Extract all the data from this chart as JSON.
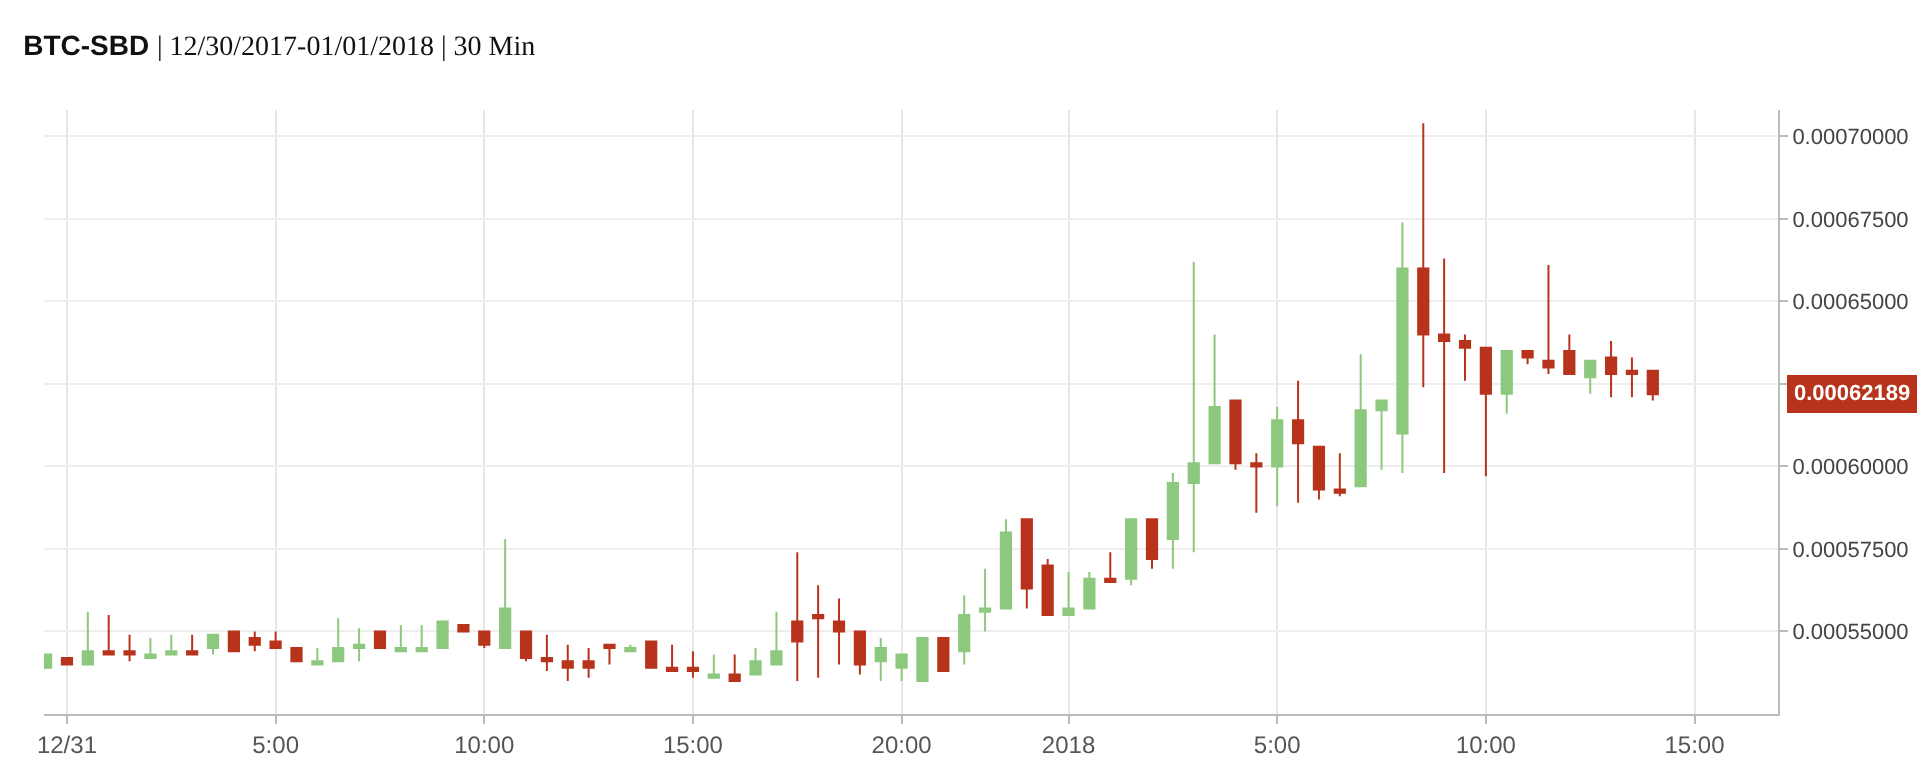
{
  "chart_data": {
    "type": "candlestick",
    "title": "BTC-SBD | 12/30/2017-01/01/2018 | 30 Min",
    "x": [
      "2017-12-30T23:30",
      "2017-12-31T00:00",
      "2017-12-31T00:30",
      "2017-12-31T01:00",
      "2017-12-31T01:30",
      "2017-12-31T02:00",
      "2017-12-31T02:30",
      "2017-12-31T03:00",
      "2017-12-31T03:30",
      "2017-12-31T04:00",
      "2017-12-31T04:30",
      "2017-12-31T05:00",
      "2017-12-31T05:30",
      "2017-12-31T06:00",
      "2017-12-31T06:30",
      "2017-12-31T07:00",
      "2017-12-31T07:30",
      "2017-12-31T08:00",
      "2017-12-31T08:30",
      "2017-12-31T09:00",
      "2017-12-31T09:30",
      "2017-12-31T10:00",
      "2017-12-31T10:30",
      "2017-12-31T11:00",
      "2017-12-31T11:30",
      "2017-12-31T12:00",
      "2017-12-31T12:30",
      "2017-12-31T13:00",
      "2017-12-31T13:30",
      "2017-12-31T14:00",
      "2017-12-31T14:30",
      "2017-12-31T15:00",
      "2017-12-31T15:30",
      "2017-12-31T16:00",
      "2017-12-31T16:30",
      "2017-12-31T17:00",
      "2017-12-31T17:30",
      "2017-12-31T18:00",
      "2017-12-31T18:30",
      "2017-12-31T19:00",
      "2017-12-31T19:30",
      "2017-12-31T20:00",
      "2017-12-31T20:30",
      "2017-12-31T21:00",
      "2017-12-31T21:30",
      "2017-12-31T22:00",
      "2017-12-31T22:30",
      "2017-12-31T23:00",
      "2017-12-31T23:30",
      "2018-01-01T00:00",
      "2018-01-01T00:30",
      "2018-01-01T01:00",
      "2018-01-01T01:30",
      "2018-01-01T02:00",
      "2018-01-01T02:30",
      "2018-01-01T03:00",
      "2018-01-01T03:30",
      "2018-01-01T04:00",
      "2018-01-01T04:30",
      "2018-01-01T05:00",
      "2018-01-01T05:30",
      "2018-01-01T06:00",
      "2018-01-01T06:30",
      "2018-01-01T07:00",
      "2018-01-01T07:30",
      "2018-01-01T08:00",
      "2018-01-01T08:30",
      "2018-01-01T09:00",
      "2018-01-01T09:30",
      "2018-01-01T10:00",
      "2018-01-01T10:30",
      "2018-01-01T11:00",
      "2018-01-01T11:30",
      "2018-01-01T12:00",
      "2018-01-01T12:30",
      "2018-01-01T13:00",
      "2018-01-01T13:30",
      "2018-01-01T14:00"
    ],
    "ohlc": [
      [
        0.000539,
        0.000543,
        0.000539,
        0.000543
      ],
      [
        0.000542,
        0.000542,
        0.00054,
        0.00054
      ],
      [
        0.00054,
        0.000556,
        0.00054,
        0.000544
      ],
      [
        0.000544,
        0.000555,
        0.000543,
        0.000543
      ],
      [
        0.000544,
        0.000549,
        0.000541,
        0.000543
      ],
      [
        0.000542,
        0.000548,
        0.000542,
        0.000543
      ],
      [
        0.000543,
        0.000549,
        0.000543,
        0.000544
      ],
      [
        0.000544,
        0.000549,
        0.000543,
        0.000543
      ],
      [
        0.000545,
        0.000549,
        0.000543,
        0.000549
      ],
      [
        0.00055,
        0.00055,
        0.000544,
        0.000544
      ],
      [
        0.000548,
        0.00055,
        0.000544,
        0.000546
      ],
      [
        0.000547,
        0.00055,
        0.000545,
        0.000545
      ],
      [
        0.000545,
        0.000545,
        0.000541,
        0.000541
      ],
      [
        0.00054,
        0.000545,
        0.00054,
        0.000541
      ],
      [
        0.000541,
        0.000554,
        0.000541,
        0.000545
      ],
      [
        0.000545,
        0.000551,
        0.000541,
        0.000546
      ],
      [
        0.00055,
        0.00055,
        0.000545,
        0.000545
      ],
      [
        0.000544,
        0.000552,
        0.000544,
        0.000545
      ],
      [
        0.000544,
        0.000552,
        0.000544,
        0.000545
      ],
      [
        0.000545,
        0.000553,
        0.000545,
        0.000553
      ],
      [
        0.000552,
        0.000552,
        0.00055,
        0.00055
      ],
      [
        0.00055,
        0.00055,
        0.000545,
        0.000546
      ],
      [
        0.000545,
        0.000578,
        0.000545,
        0.000557
      ],
      [
        0.00055,
        0.00055,
        0.000541,
        0.000542
      ],
      [
        0.000542,
        0.000549,
        0.000538,
        0.000541
      ],
      [
        0.000541,
        0.000546,
        0.000535,
        0.000539
      ],
      [
        0.000541,
        0.000545,
        0.000536,
        0.000539
      ],
      [
        0.000546,
        0.000546,
        0.00054,
        0.000545
      ],
      [
        0.000544,
        0.000546,
        0.000544,
        0.000545
      ],
      [
        0.000547,
        0.000547,
        0.000539,
        0.000539
      ],
      [
        0.000539,
        0.000546,
        0.000538,
        0.000538
      ],
      [
        0.000539,
        0.000544,
        0.000536,
        0.000538
      ],
      [
        0.000536,
        0.000543,
        0.000536,
        0.000537
      ],
      [
        0.000537,
        0.000543,
        0.000535,
        0.000535
      ],
      [
        0.000537,
        0.000545,
        0.000537,
        0.000541
      ],
      [
        0.00054,
        0.000556,
        0.00054,
        0.000544
      ],
      [
        0.000553,
        0.000574,
        0.000535,
        0.000547
      ],
      [
        0.000555,
        0.000564,
        0.000536,
        0.000554
      ],
      [
        0.000553,
        0.00056,
        0.00054,
        0.00055
      ],
      [
        0.00055,
        0.00055,
        0.000537,
        0.00054
      ],
      [
        0.000541,
        0.000548,
        0.000535,
        0.000545
      ],
      [
        0.000539,
        0.000543,
        0.000535,
        0.000543
      ],
      [
        0.000535,
        0.000548,
        0.000535,
        0.000548
      ],
      [
        0.000548,
        0.000548,
        0.000538,
        0.000538
      ],
      [
        0.000544,
        0.000561,
        0.00054,
        0.000555
      ],
      [
        0.000556,
        0.000569,
        0.00055,
        0.000557
      ],
      [
        0.000557,
        0.000584,
        0.000557,
        0.00058
      ],
      [
        0.000584,
        0.000584,
        0.000557,
        0.000563
      ],
      [
        0.00057,
        0.000572,
        0.000555,
        0.000555
      ],
      [
        0.000555,
        0.000568,
        0.000555,
        0.000557
      ],
      [
        0.000557,
        0.000568,
        0.000557,
        0.000566
      ],
      [
        0.000566,
        0.000574,
        0.000565,
        0.000565
      ],
      [
        0.000566,
        0.000584,
        0.000564,
        0.000584
      ],
      [
        0.000584,
        0.000584,
        0.000569,
        0.000572
      ],
      [
        0.000578,
        0.000598,
        0.000569,
        0.000595
      ],
      [
        0.000595,
        0.000662,
        0.000574,
        0.000601
      ],
      [
        0.000601,
        0.00064,
        0.000601,
        0.000618
      ],
      [
        0.00062,
        0.00062,
        0.000599,
        0.000601
      ],
      [
        0.000601,
        0.000604,
        0.000586,
        0.0006
      ],
      [
        0.0006,
        0.000618,
        0.000588,
        0.000614
      ],
      [
        0.000614,
        0.000626,
        0.000589,
        0.000607
      ],
      [
        0.000606,
        0.000606,
        0.00059,
        0.000593
      ],
      [
        0.000593,
        0.000604,
        0.000591,
        0.000592
      ],
      [
        0.000594,
        0.000634,
        0.000594,
        0.000617
      ],
      [
        0.000617,
        0.00062,
        0.000599,
        0.00062
      ],
      [
        0.00061,
        0.000674,
        0.000598,
        0.00066
      ],
      [
        0.00066,
        0.000704,
        0.000624,
        0.00064
      ],
      [
        0.00064,
        0.000663,
        0.000598,
        0.000638
      ],
      [
        0.000638,
        0.00064,
        0.000626,
        0.000636
      ],
      [
        0.000636,
        0.000636,
        0.000597,
        0.000622
      ],
      [
        0.000622,
        0.000635,
        0.000616,
        0.000635
      ],
      [
        0.000635,
        0.000635,
        0.000631,
        0.000633
      ],
      [
        0.000632,
        0.000661,
        0.000628,
        0.00063
      ],
      [
        0.000635,
        0.00064,
        0.000628,
        0.000628
      ],
      [
        0.000627,
        0.000632,
        0.000622,
        0.000632
      ],
      [
        0.000633,
        0.000638,
        0.000621,
        0.000628
      ],
      [
        0.000629,
        0.000633,
        0.000621,
        0.000628
      ],
      [
        0.000629,
        0.000629,
        0.00062,
        0.00062189
      ]
    ],
    "colors": [
      "#8cc97e",
      "#b8331b",
      "#8cc97e",
      "#b8331b",
      "#b8331b",
      "#8cc97e",
      "#8cc97e",
      "#b8331b",
      "#8cc97e",
      "#b8331b",
      "#b8331b",
      "#b8331b",
      "#b8331b",
      "#8cc97e",
      "#8cc97e",
      "#8cc97e",
      "#b8331b",
      "#8cc97e",
      "#8cc97e",
      "#8cc97e",
      "#b8331b",
      "#b8331b",
      "#8cc97e",
      "#b8331b",
      "#b8331b",
      "#b8331b",
      "#b8331b",
      "#b8331b",
      "#8cc97e",
      "#b8331b",
      "#b8331b",
      "#b8331b",
      "#8cc97e",
      "#b8331b",
      "#8cc97e",
      "#8cc97e",
      "#b8331b",
      "#b8331b",
      "#b8331b",
      "#b8331b",
      "#8cc97e",
      "#8cc97e",
      "#8cc97e",
      "#b8331b",
      "#8cc97e",
      "#8cc97e",
      "#8cc97e",
      "#b8331b",
      "#b8331b",
      "#8cc97e",
      "#8cc97e",
      "#b8331b",
      "#8cc97e",
      "#b8331b",
      "#8cc97e",
      "#8cc97e",
      "#8cc97e",
      "#b8331b",
      "#b8331b",
      "#8cc97e",
      "#b8331b",
      "#b8331b",
      "#b8331b",
      "#8cc97e",
      "#8cc97e",
      "#8cc97e",
      "#b8331b",
      "#b8331b",
      "#b8331b",
      "#b8331b",
      "#8cc97e",
      "#b8331b",
      "#b8331b",
      "#b8331b",
      "#8cc97e",
      "#b8331b",
      "#b8331b",
      "#b8331b"
    ],
    "xlim": [
      "2017-12-30T23:27",
      "2018-01-01T17:00"
    ],
    "xticks": [
      {
        "value": "2017-12-31T00:00",
        "label": "12/31"
      },
      {
        "value": "2017-12-31T05:00",
        "label": "5:00"
      },
      {
        "value": "2017-12-31T10:00",
        "label": "10:00"
      },
      {
        "value": "2017-12-31T15:00",
        "label": "15:00"
      },
      {
        "value": "2017-12-31T20:00",
        "label": "20:00"
      },
      {
        "value": "2018-01-01T00:00",
        "label": "2018"
      },
      {
        "value": "2018-01-01T05:00",
        "label": "5:00"
      },
      {
        "value": "2018-01-01T10:00",
        "label": "10:00"
      },
      {
        "value": "2018-01-01T15:00",
        "label": "15:00"
      }
    ],
    "ylim": [
      0.000525,
      0.000708
    ],
    "yticks": [
      {
        "value": 0.00055,
        "label": "0.00055000"
      },
      {
        "value": 0.000575,
        "label": "0.00057500"
      },
      {
        "value": 0.0006,
        "label": "0.00060000"
      },
      {
        "value": 0.000625,
        "label": null
      },
      {
        "value": 0.00065,
        "label": "0.00065000"
      },
      {
        "value": 0.000675,
        "label": "0.00067500"
      },
      {
        "value": 0.0007,
        "label": "0.00070000"
      }
    ],
    "grid": true,
    "annotations": [
      "0.00062189"
    ]
  }
}
